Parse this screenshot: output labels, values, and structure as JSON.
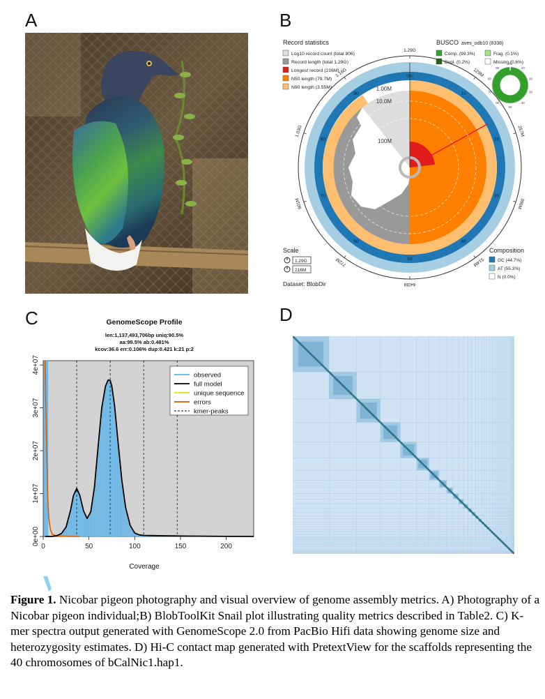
{
  "panels": {
    "a": "A",
    "b": "B",
    "c": "C",
    "d": "D"
  },
  "colors": {
    "busco_complete": "#33a02c",
    "busco_dupl": "#20641c",
    "busco_frag": "#a3e28f",
    "longest": "#e31a1c",
    "n50": "#ff7f00",
    "n90": "#fdbf6f",
    "gc": "#1f78b4",
    "at": "#a6cee3",
    "record_len": "#999999",
    "log10": "#dddddd"
  },
  "snail": {
    "record_statistics_title": "Record statistics",
    "legend": [
      {
        "label": "Log10 record count (total 806)",
        "color": "#dddddd"
      },
      {
        "label": "Record length (total 1.29G)",
        "color": "#999999"
      },
      {
        "label": "Longest record (216M)",
        "color": "#e31a1c"
      },
      {
        "label": "N50 length (79.7M)",
        "color": "#ff7f00"
      },
      {
        "label": "N90 length (3.55M)",
        "color": "#fdbf6f"
      }
    ],
    "busco_title": "BUSCO",
    "busco_lineage": "aves_odb10 (8338)",
    "busco_legend": [
      {
        "label": "Comp. (99.3%)",
        "color": "#33a02c"
      },
      {
        "label": "Frag. (0.1%)",
        "color": "#a3e28f"
      },
      {
        "label": "Dupl. (0.2%)",
        "color": "#20641c"
      },
      {
        "label": "Missing (0.6%)",
        "color": "#ffffff"
      }
    ],
    "scale_title": "Scale",
    "scale_items": [
      "1.29G",
      "216M"
    ],
    "composition_title": "Composition",
    "composition_legend": [
      {
        "label": "GC (44.7%)",
        "color": "#1f78b4"
      },
      {
        "label": "AT (55.3%)",
        "color": "#a6cee3"
      },
      {
        "label": "N (0.0%)",
        "color": "#ffffff"
      }
    ],
    "dataset": "Dataset: BlobDir",
    "radial_labels": [
      "1.00M",
      "10.0M",
      "100M"
    ],
    "outer_labels": [
      "1.29G",
      "129M",
      "257M",
      "386M",
      "514M",
      "643M",
      "772M",
      "901M",
      "1.03G",
      "1.16G"
    ],
    "pct_labels": [
      "0%",
      "10",
      "20",
      "30",
      "40",
      "50",
      "60",
      "70",
      "80",
      "90"
    ],
    "mini_ticks": [
      "0%",
      "10",
      "20",
      "30",
      "40",
      "50",
      "60",
      "70",
      "80",
      "90"
    ]
  },
  "chart_data": {
    "type": "line",
    "title": "GenomeScope Profile",
    "subtitle_lines": [
      "len:1,137,493,706bp uniq:90.5%",
      "aa:99.5% ab:0.481%",
      "kcov:36.6 err:0.106% dup:0.421 k:21 p:2"
    ],
    "xlabel": "Coverage",
    "ylabel": "",
    "xlim": [
      0,
      230
    ],
    "ylim": [
      0,
      41000000
    ],
    "x_ticks": [
      0,
      50,
      100,
      150,
      200
    ],
    "x_tick_labels": [
      "0",
      "50",
      "100",
      "150",
      "200"
    ],
    "y_ticks": [
      0,
      10000000,
      20000000,
      30000000,
      40000000
    ],
    "y_tick_labels": [
      "0e+00",
      "1e+07",
      "2e+07",
      "3e+07",
      "4e+07"
    ],
    "kmer_peaks": [
      36.6,
      73.2,
      109.8,
      146.4
    ],
    "legend": [
      {
        "label": "observed",
        "color": "#56b4e9",
        "style": "line"
      },
      {
        "label": "full model",
        "color": "#000000",
        "style": "line"
      },
      {
        "label": "unique sequence",
        "color": "#e6e600",
        "style": "line"
      },
      {
        "label": "errors",
        "color": "#d55e00",
        "style": "line"
      },
      {
        "label": "kmer-peaks",
        "color": "#000000",
        "style": "dashed"
      }
    ],
    "series": [
      {
        "name": "full model",
        "x": [
          2,
          5,
          10,
          15,
          20,
          25,
          30,
          33,
          36.6,
          40,
          44,
          48,
          52,
          56,
          60,
          64,
          68,
          71,
          73.2,
          75,
          78,
          82,
          86,
          90,
          95,
          100,
          105,
          110,
          120,
          140,
          160,
          200,
          230
        ],
        "y": [
          0,
          0,
          0,
          200000,
          700000,
          2200000,
          6200000,
          9500000,
          11200000,
          9600000,
          6000000,
          4200000,
          5800000,
          11500000,
          21000000,
          30000000,
          35000000,
          36500000,
          36400000,
          35000000,
          30500000,
          21500000,
          13000000,
          6800000,
          2600000,
          800000,
          350000,
          250000,
          200000,
          150000,
          80000,
          20000,
          0
        ]
      },
      {
        "name": "errors",
        "x": [
          2,
          3,
          4,
          5,
          6,
          8,
          10,
          14,
          20,
          30,
          40
        ],
        "y": [
          41000000,
          30000000,
          18000000,
          9000000,
          4500000,
          1500000,
          500000,
          150000,
          60000,
          20000,
          0
        ]
      }
    ]
  },
  "caption": {
    "label": "Figure 1.",
    "text": " Nicobar pigeon photography and visual overview of genome assembly metrics. A) Photography of a  Nicobar pigeon individual;B) BlobToolKit Snail plot illustrating quality metrics described in Table2. C) K-mer spectra output generated with GenomeScope 2.0 from PacBio Hifi data showing genome size and heterozygosity estimates. D) Hi-C contact map generated with PretextView for the scaffolds representing the 40 chromosomes of bCalNic1.hap1."
  }
}
